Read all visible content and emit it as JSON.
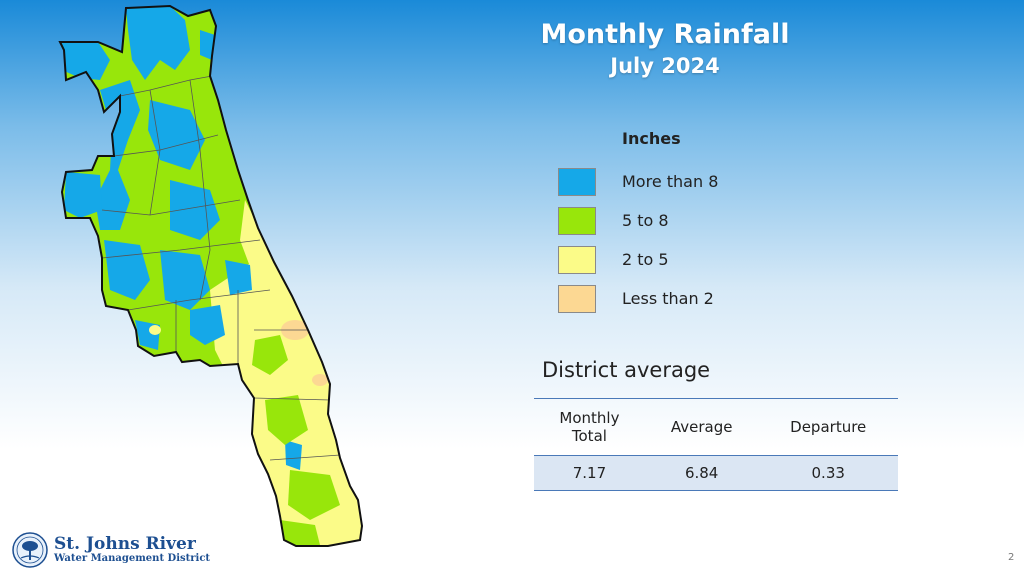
{
  "title": "Monthly Rainfall",
  "subtitle": "July 2024",
  "legend": {
    "title": "Inches",
    "items": [
      {
        "label": "More than 8",
        "color": "#15a8e8"
      },
      {
        "label": "5 to 8",
        "color": "#98e60b"
      },
      {
        "label": "2 to 5",
        "color": "#fbfb88"
      },
      {
        "label": "Less than 2",
        "color": "#fcd893"
      }
    ]
  },
  "district": {
    "heading": "District average",
    "columns": [
      "Monthly\nTotal",
      "Average",
      "Departure"
    ],
    "values": [
      "7.17",
      "6.84",
      "0.33"
    ]
  },
  "logo": {
    "line1": "St. Johns River",
    "line2": "Water Management District"
  },
  "page_number": "2"
}
